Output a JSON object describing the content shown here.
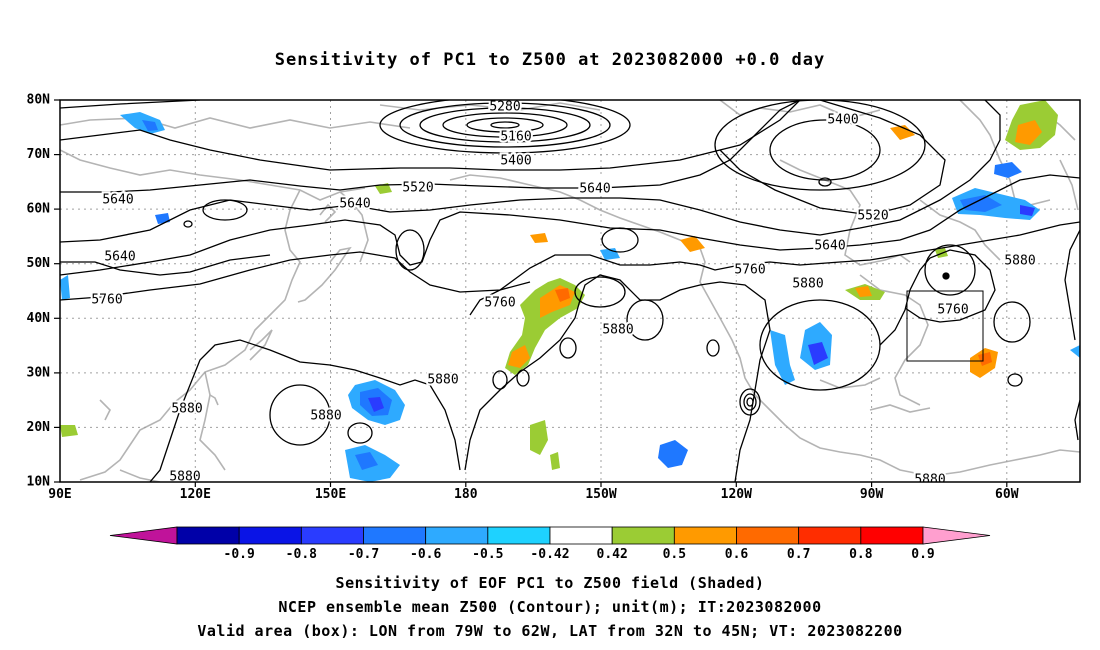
{
  "title": "Sensitivity of PC1 to Z500 at 2023082000 +0.0 day",
  "axes": {
    "lat_labels": [
      "80N",
      "70N",
      "60N",
      "50N",
      "40N",
      "30N",
      "20N",
      "10N"
    ],
    "lon_labels": [
      "90E",
      "120E",
      "150E",
      "180",
      "150W",
      "120W",
      "90W",
      "60W"
    ]
  },
  "contour_labels": [
    {
      "text": "5280"
    },
    {
      "text": "5160"
    },
    {
      "text": "5400"
    },
    {
      "text": "5400"
    },
    {
      "text": "5520"
    },
    {
      "text": "5640"
    },
    {
      "text": "5520"
    },
    {
      "text": "5640"
    },
    {
      "text": "5640"
    },
    {
      "text": "5640"
    },
    {
      "text": "5640"
    },
    {
      "text": "5760"
    },
    {
      "text": "5760"
    },
    {
      "text": "5760"
    },
    {
      "text": "5880"
    },
    {
      "text": "5880"
    },
    {
      "text": "5760"
    },
    {
      "text": "5880"
    },
    {
      "text": "5880"
    },
    {
      "text": "5880"
    },
    {
      "text": "5880"
    },
    {
      "text": "5880"
    },
    {
      "text": "5880"
    }
  ],
  "colorbar": {
    "labels": [
      "-0.9",
      "-0.8",
      "-0.7",
      "-0.6",
      "-0.5",
      "-0.42",
      "0.42",
      "0.5",
      "0.6",
      "0.7",
      "0.8",
      "0.9"
    ],
    "colors": [
      "#c0139a",
      "#0000a8",
      "#0a14e6",
      "#2a3cff",
      "#1f78ff",
      "#2eaaff",
      "#1ed2ff",
      "#ffffff",
      "#9bcc34",
      "#ff9a00",
      "#ff6a00",
      "#ff2d00",
      "#ff0000",
      "#ff9fcf"
    ]
  },
  "footer": {
    "line1": "Sensitivity of EOF PC1 to Z500 field (Shaded)",
    "line2": "NCEP ensemble mean Z500 (Contour); unit(m); IT:2023082000",
    "line3": "Valid area (box): LON from 79W to 62W, LAT from 32N to 45N; VT: 2023082200"
  }
}
